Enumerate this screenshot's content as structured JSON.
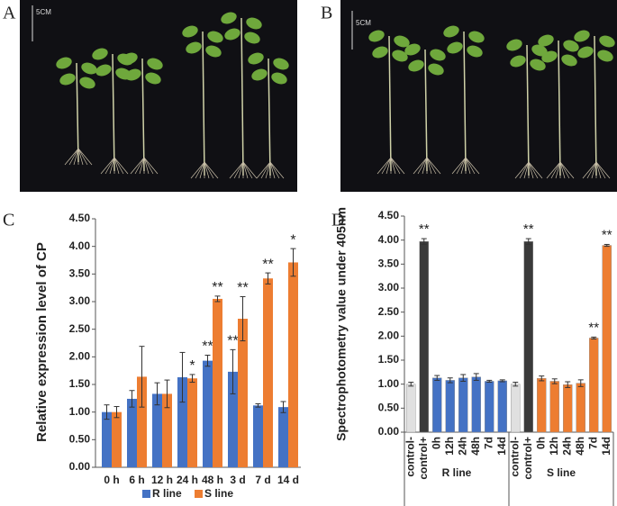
{
  "figure": {
    "panel_labels": [
      "A",
      "B",
      "C",
      "D"
    ],
    "scale_labels": [
      "5CM",
      "5CM"
    ]
  },
  "chart_data": [
    {
      "type": "bar",
      "y_label": "Relative expression level of CP",
      "categories": [
        "0 h",
        "6 h",
        "12 h",
        "24 h",
        "48 h",
        "3 d",
        "7 d",
        "14 d"
      ],
      "series": [
        {
          "name": "R line",
          "color": "#4472c4",
          "values": [
            1.0,
            1.24,
            1.33,
            1.63,
            1.93,
            1.73,
            1.12,
            1.09
          ],
          "errors": [
            0.13,
            0.15,
            0.2,
            0.45,
            0.1,
            0.4,
            0.03,
            0.1
          ],
          "annotations": [
            null,
            null,
            null,
            null,
            "**",
            "**",
            null,
            null
          ]
        },
        {
          "name": "S line",
          "color": "#ed7d31",
          "values": [
            1.0,
            1.64,
            1.33,
            1.61,
            3.05,
            2.69,
            3.42,
            3.71
          ],
          "errors": [
            0.1,
            0.55,
            0.25,
            0.07,
            0.05,
            0.4,
            0.1,
            0.25
          ],
          "annotations": [
            null,
            null,
            null,
            "*",
            "**",
            "**",
            "**",
            "*"
          ]
        }
      ],
      "ylim": [
        0,
        4.5
      ],
      "yticks": [
        {
          "value": 0,
          "label": "0.00"
        },
        {
          "value": 0.5,
          "label": "0.50"
        },
        {
          "value": 1,
          "label": "1.00"
        },
        {
          "value": 1.5,
          "label": "1.50"
        },
        {
          "value": 2,
          "label": "2.00"
        },
        {
          "value": 2.5,
          "label": "2.50"
        },
        {
          "value": 3,
          "label": "3.00"
        },
        {
          "value": 3.5,
          "label": "3.50"
        },
        {
          "value": 4,
          "label": "4.00"
        },
        {
          "value": 4.5,
          "label": "4.50"
        }
      ],
      "legend": "bottom"
    },
    {
      "type": "bar",
      "y_label": "Spectrophotometry value under 405nm",
      "categories": [
        "control-",
        "control+",
        "0h",
        "12h",
        "24h",
        "48h",
        "7d",
        "14d",
        "control-",
        "control+",
        "0h",
        "12h",
        "24h",
        "48h",
        "7d",
        "14d"
      ],
      "groups": [
        "R line",
        "S line"
      ],
      "values": [
        1.0,
        3.97,
        1.13,
        1.08,
        1.13,
        1.15,
        1.06,
        1.07,
        1.0,
        3.97,
        1.12,
        1.06,
        0.99,
        1.02,
        1.96,
        3.89
      ],
      "errors": [
        0.04,
        0.06,
        0.05,
        0.05,
        0.07,
        0.07,
        0.02,
        0.02,
        0.04,
        0.06,
        0.05,
        0.05,
        0.06,
        0.07,
        0.02,
        0.02
      ],
      "colors": [
        "#e0e0e0",
        "#3a3a3a",
        "#4472c4",
        "#4472c4",
        "#4472c4",
        "#4472c4",
        "#4472c4",
        "#4472c4",
        "#e0e0e0",
        "#3a3a3a",
        "#ed7d31",
        "#ed7d31",
        "#ed7d31",
        "#ed7d31",
        "#ed7d31",
        "#ed7d31"
      ],
      "annotations": [
        null,
        "**",
        null,
        null,
        null,
        null,
        null,
        null,
        null,
        "**",
        null,
        null,
        null,
        null,
        "**",
        "**"
      ],
      "ylim": [
        0,
        4.5
      ],
      "yticks": [
        {
          "value": 0,
          "label": "0.00"
        },
        {
          "value": 0.5,
          "label": "0.50"
        },
        {
          "value": 1,
          "label": "1.00"
        },
        {
          "value": 1.5,
          "label": "1.50"
        },
        {
          "value": 2,
          "label": "2.00"
        },
        {
          "value": 2.5,
          "label": "2.50"
        },
        {
          "value": 3,
          "label": "3.00"
        },
        {
          "value": 3.5,
          "label": "3.50"
        },
        {
          "value": 4,
          "label": "4.00"
        },
        {
          "value": 4.5,
          "label": "4.50"
        }
      ]
    }
  ]
}
